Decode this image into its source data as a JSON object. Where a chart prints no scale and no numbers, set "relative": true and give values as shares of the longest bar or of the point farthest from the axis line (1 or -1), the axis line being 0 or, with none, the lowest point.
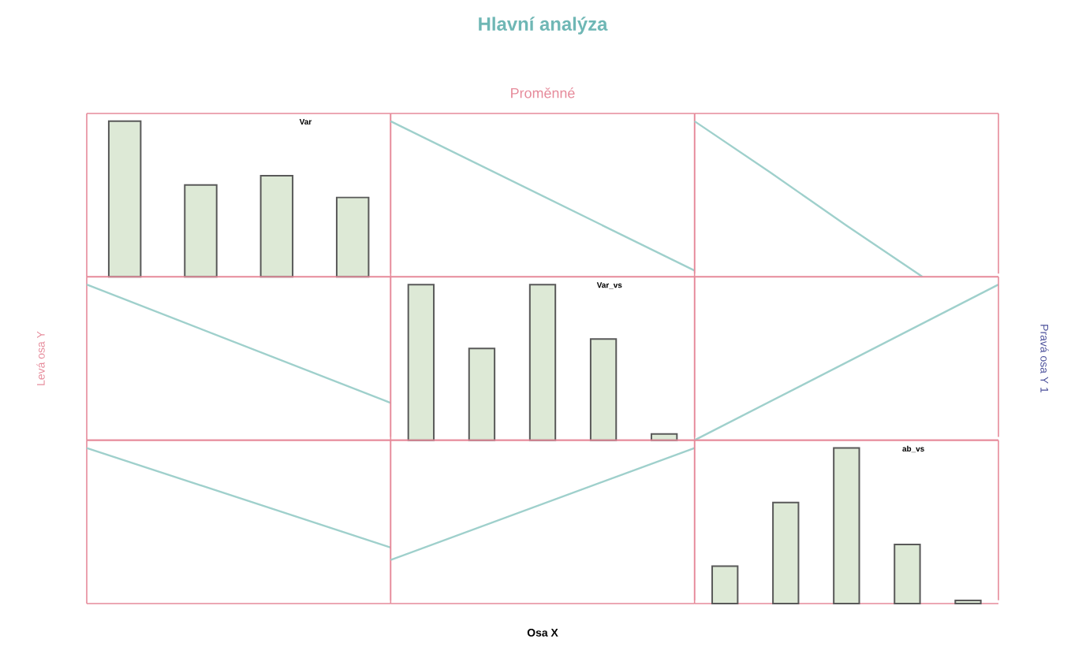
{
  "chart_data": [
    {
      "type": "bar",
      "title": "Var",
      "categories": [
        null,
        null,
        null,
        null
      ],
      "relative": true,
      "tick_labels": false,
      "series": [
        {
          "color": "#dde9d6",
          "values": [
            1,
            0.59,
            0.65,
            0.51
          ]
        }
      ]
    },
    {
      "type": "line",
      "title": "Hlavní analýza",
      "subtitle": "Proměnné",
      "categories": [
        null,
        null
      ],
      "relative": true,
      "tick_labels": false,
      "series": [
        {
          "color": "#9fd0cc",
          "values": [
            1,
            0.04
          ]
        }
      ]
    },
    {
      "type": "line",
      "categories": [
        null,
        null,
        null,
        null,
        null
      ],
      "relative": true,
      "tick_labels": false,
      "series": [
        {
          "color": "#9fd0cc",
          "values": [
            1,
            0.67,
            0.33,
            0,
            null
          ]
        }
      ]
    },
    {
      "type": "line",
      "ylabel": "Levá osa Y",
      "categories": [
        null,
        null
      ],
      "relative": true,
      "tick_labels": false,
      "series": [
        {
          "color": "#9fd0cc",
          "values": [
            1,
            0.24
          ]
        }
      ]
    },
    {
      "type": "bar",
      "title": "Var_vs",
      "categories": [
        null,
        null,
        null,
        null,
        null
      ],
      "relative": true,
      "tick_labels": false,
      "series": [
        {
          "color": "#dde9d6",
          "values": [
            1,
            0.59,
            1,
            0.65,
            0.04
          ]
        }
      ]
    },
    {
      "type": "line",
      "y2label": "Pravá osa Y 1",
      "categories": [
        null,
        null
      ],
      "relative": true,
      "tick_labels": false,
      "series": [
        {
          "color": "#9fd0cc",
          "values": [
            0,
            1
          ]
        }
      ]
    },
    {
      "type": "line",
      "categories": [
        null,
        null
      ],
      "relative": true,
      "tick_labels": false,
      "series": [
        {
          "color": "#9fd0cc",
          "values": [
            1,
            0.36
          ]
        }
      ]
    },
    {
      "type": "line",
      "xlabel": "Osa X",
      "categories": [
        null,
        null
      ],
      "relative": true,
      "tick_labels": false,
      "series": [
        {
          "color": "#9fd0cc",
          "values": [
            0.28,
            1
          ]
        }
      ]
    },
    {
      "type": "bar",
      "title": "ab_vs",
      "categories": [
        null,
        null,
        null,
        null,
        null
      ],
      "relative": true,
      "tick_labels": false,
      "series": [
        {
          "color": "#dde9d6",
          "values": [
            0.24,
            0.65,
            1,
            0.38,
            0.02
          ]
        }
      ]
    }
  ]
}
